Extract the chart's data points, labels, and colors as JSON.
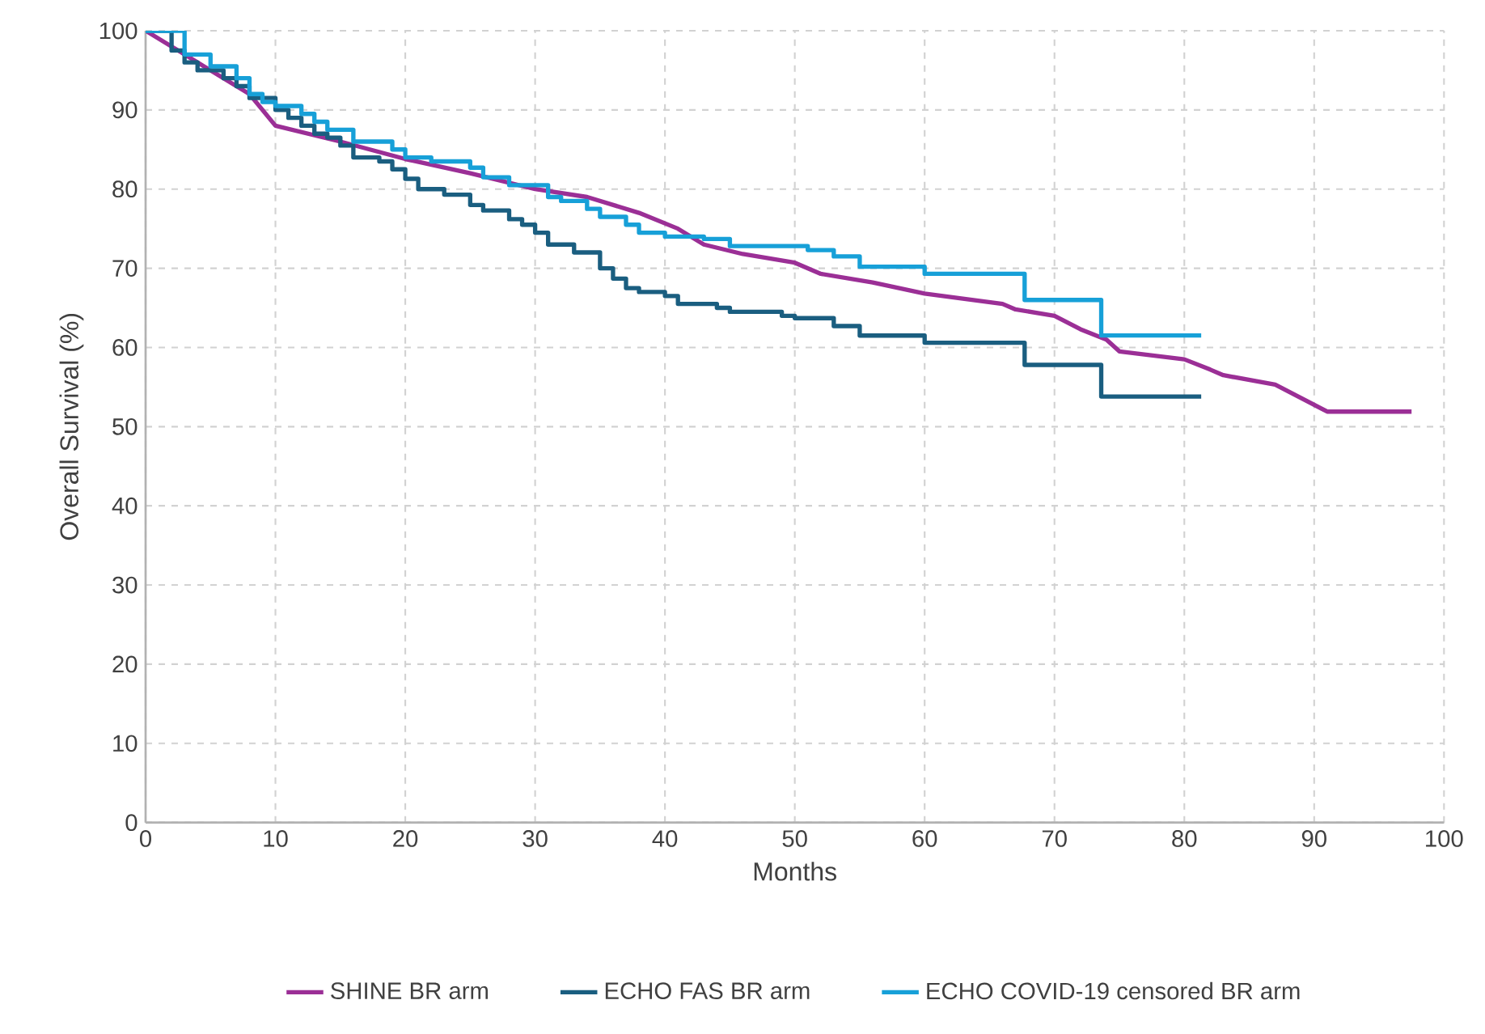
{
  "chart_data": {
    "type": "line",
    "xlabel": "Months",
    "ylabel": "Overall Survival (%)",
    "xlim": [
      0,
      100
    ],
    "ylim": [
      0,
      100
    ],
    "xticks": [
      0,
      10,
      20,
      30,
      40,
      50,
      60,
      70,
      80,
      90,
      100
    ],
    "yticks": [
      0,
      10,
      20,
      30,
      40,
      50,
      60,
      70,
      80,
      90,
      100
    ],
    "grid": true,
    "legend": "bottom",
    "marker": "none",
    "line_style": "solid",
    "series": [
      {
        "name": "SHINE BR arm",
        "color": "#9b2f96",
        "x": [
          0,
          3,
          6,
          8,
          10,
          15,
          20,
          25,
          30,
          34,
          38,
          41,
          43,
          46,
          50,
          52,
          56,
          60,
          66,
          67,
          70,
          72,
          74,
          75,
          80,
          82,
          83,
          87,
          91,
          97.5
        ],
        "values": [
          100,
          97,
          94,
          92,
          88,
          86,
          83.8,
          82,
          80,
          79,
          77,
          75,
          73,
          71.8,
          70.7,
          69.3,
          68.2,
          66.8,
          65.5,
          64.8,
          64,
          62.3,
          61,
          59.5,
          58.5,
          57.2,
          56.5,
          55.3,
          51.9,
          51.9
        ]
      },
      {
        "name": "ECHO FAS BR arm",
        "color": "#1a5e80",
        "type": "step",
        "x": [
          0,
          2,
          3,
          4,
          6,
          7,
          8,
          10,
          11,
          12,
          13,
          14,
          15,
          16,
          18,
          19,
          20,
          21,
          23,
          25,
          26,
          28,
          29,
          30,
          31,
          33,
          35,
          36,
          37,
          38,
          40,
          41,
          44,
          45,
          49,
          50,
          53,
          55,
          60,
          67.7,
          73.6,
          81.3
        ],
        "values": [
          100,
          97.5,
          96,
          95,
          94,
          93,
          91.5,
          90,
          89,
          88,
          87,
          86.5,
          85.5,
          84,
          83.5,
          82.5,
          81.3,
          80,
          79.3,
          78,
          77.3,
          76.2,
          75.5,
          74.5,
          73,
          72,
          70,
          68.7,
          67.5,
          67,
          66.5,
          65.5,
          65,
          64.5,
          64,
          63.7,
          62.7,
          61.5,
          60.6,
          57.8,
          53.8,
          53.8
        ]
      },
      {
        "name": "ECHO COVID-19 censored BR arm",
        "color": "#17a0d8",
        "type": "step",
        "x": [
          0,
          3,
          5,
          7,
          8,
          9,
          10,
          12,
          13,
          14,
          16,
          19,
          20,
          22,
          25,
          26,
          28,
          31,
          32,
          34,
          35,
          37,
          38,
          40,
          43,
          45,
          51,
          53,
          55,
          60,
          67.7,
          73.6,
          81.3
        ],
        "values": [
          100,
          97,
          95.5,
          94,
          92,
          91,
          90.5,
          89.5,
          88.5,
          87.5,
          86,
          85,
          84,
          83.5,
          82.7,
          81.5,
          80.5,
          79,
          78.5,
          77.5,
          76.5,
          75.5,
          74.5,
          74,
          73.7,
          72.8,
          72.3,
          71.5,
          70.2,
          69.3,
          66,
          61.5,
          61.5
        ]
      }
    ]
  }
}
